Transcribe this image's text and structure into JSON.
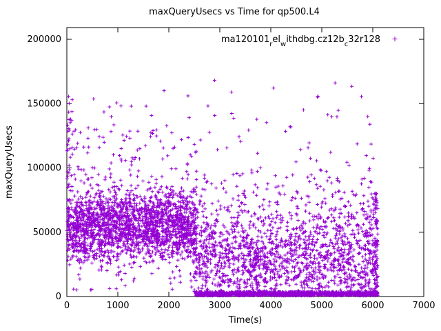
{
  "page_title": "maxQueryUsecs vs Time for qp500.L4",
  "chart_data": {
    "type": "scatter",
    "title": "maxQueryUsecs vs Time for qp500.L4",
    "xlabel": "Time(s)",
    "ylabel": "maxQueryUsecs",
    "xlim": [
      0,
      7000
    ],
    "ylim": [
      0,
      200000
    ],
    "x_ticks": [
      0,
      1000,
      2000,
      3000,
      4000,
      5000,
      6000,
      7000
    ],
    "y_ticks": [
      0,
      50000,
      100000,
      150000,
      200000
    ],
    "grid": false,
    "marker": "plus",
    "marker_color": "#9400d3",
    "legend": {
      "label": "ma120101_rel_withdbg.cz12b_c32r128",
      "position": "top-right",
      "segments": [
        {
          "text": "ma120101",
          "sub": false
        },
        {
          "text": "r",
          "sub": true
        },
        {
          "text": "el",
          "sub": false
        },
        {
          "text": "w",
          "sub": true
        },
        {
          "text": "ithdbg.cz12b",
          "sub": false
        },
        {
          "text": "c",
          "sub": true
        },
        {
          "text": "32r128",
          "sub": false
        }
      ]
    },
    "seed": 1234,
    "point_clusters": [
      {
        "name": "phase1-main-band",
        "x_min": 10,
        "x_max": 2550,
        "count": 2000,
        "dist": "normal",
        "mean": 55000,
        "std": 14000,
        "y_min": 26000,
        "y_max": 97000
      },
      {
        "name": "phase1-upper-scatter",
        "x_min": 30,
        "x_max": 2550,
        "count": 90,
        "dist": "uniform",
        "y_min": 90000,
        "y_max": 130000
      },
      {
        "name": "phase1-high-outliers",
        "x_min": 100,
        "x_max": 2550,
        "count": 18,
        "dist": "uniform",
        "y_min": 125000,
        "y_max": 165000
      },
      {
        "name": "phase1-low-scatter",
        "x_min": 30,
        "x_max": 2550,
        "count": 55,
        "dist": "uniform",
        "y_min": 5000,
        "y_max": 30000
      },
      {
        "name": "startup-spike",
        "x_min": 0,
        "x_max": 110,
        "count": 38,
        "dist": "uniform",
        "y_min": 30000,
        "y_max": 156000
      },
      {
        "name": "phase2-floor-line",
        "x_min": 2520,
        "x_max": 6100,
        "count": 1150,
        "dist": "uniform",
        "y_min": 600,
        "y_max": 3800
      },
      {
        "name": "phase2-cloud",
        "x_min": 2500,
        "x_max": 6100,
        "count": 1500,
        "dist": "normal",
        "mean": 30000,
        "std": 22000,
        "y_min": 4000,
        "y_max": 105000
      },
      {
        "name": "phase2-upper-band",
        "x_min": 2550,
        "x_max": 6100,
        "count": 70,
        "dist": "uniform",
        "y_min": 65000,
        "y_max": 105000
      },
      {
        "name": "phase2-high-outliers",
        "x_min": 2600,
        "x_max": 6080,
        "count": 42,
        "dist": "uniform",
        "y_min": 100000,
        "y_max": 172000
      },
      {
        "name": "end-spike",
        "x_min": 6010,
        "x_max": 6100,
        "count": 70,
        "dist": "uniform",
        "y_min": 2000,
        "y_max": 85000
      }
    ]
  }
}
